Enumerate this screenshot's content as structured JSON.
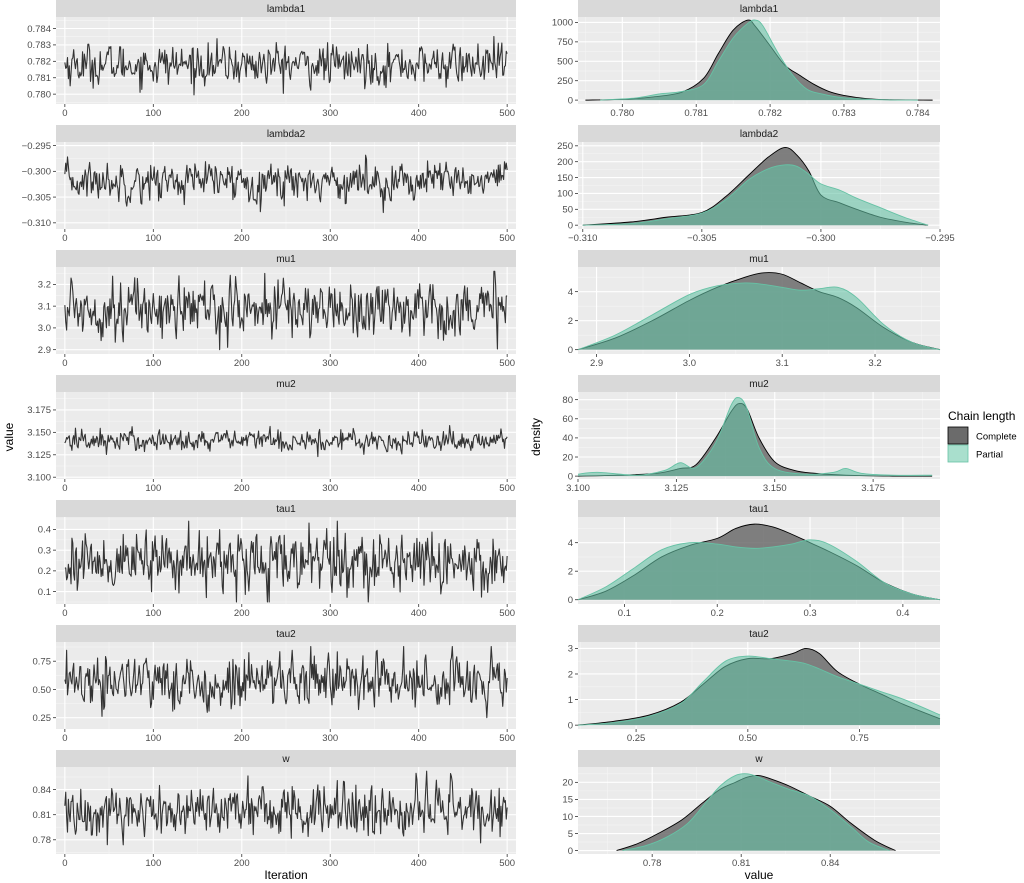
{
  "chart_data": [
    {
      "type": "line",
      "name": "trace-plots",
      "xlabel": "Iteration",
      "ylabel": "value",
      "xlim": [
        -10,
        510
      ],
      "xticks": [
        0,
        100,
        200,
        300,
        400,
        500
      ],
      "line_color": "#333333",
      "n_iterations": 500,
      "panels": [
        {
          "label": "lambda1",
          "mean": 0.7818,
          "sd": 0.0006,
          "lo": 0.7798,
          "hi": 0.7843,
          "ylim": [
            0.7794,
            0.7847
          ],
          "yticks": [
            0.78,
            0.781,
            0.782,
            0.783,
            0.784
          ],
          "ytick_labels": [
            "0.780",
            "0.781",
            "0.782",
            "0.783",
            "0.784"
          ]
        },
        {
          "label": "lambda2",
          "mean": -0.3019,
          "sd": 0.0018,
          "lo": -0.3103,
          "hi": -0.2955,
          "ylim": [
            -0.3112,
            -0.2943
          ],
          "yticks": [
            -0.31,
            -0.305,
            -0.3,
            -0.295
          ],
          "ytick_labels": [
            "−0.310",
            "−0.305",
            "−0.300",
            "−0.295"
          ]
        },
        {
          "label": "mu1",
          "mean": 3.09,
          "sd": 0.065,
          "lo": 2.9,
          "hi": 3.26,
          "ylim": [
            2.88,
            3.28
          ],
          "yticks": [
            2.9,
            3.0,
            3.1,
            3.2
          ],
          "ytick_labels": [
            "2.9",
            "3.0",
            "3.1",
            "3.2"
          ]
        },
        {
          "label": "mu2",
          "mean": 3.141,
          "sd": 0.006,
          "lo": 3.103,
          "hi": 3.19,
          "ylim": [
            3.098,
            3.195
          ],
          "yticks": [
            3.1,
            3.125,
            3.15,
            3.175
          ],
          "ytick_labels": [
            "3.100",
            "3.125",
            "3.150",
            "3.175"
          ]
        },
        {
          "label": "tau1",
          "mean": 0.245,
          "sd": 0.07,
          "lo": 0.05,
          "hi": 0.44,
          "ylim": [
            0.04,
            0.46
          ],
          "yticks": [
            0.1,
            0.2,
            0.3,
            0.4
          ],
          "ytick_labels": [
            "0.1",
            "0.2",
            "0.3",
            "0.4"
          ]
        },
        {
          "label": "tau2",
          "mean": 0.57,
          "sd": 0.12,
          "lo": 0.18,
          "hi": 0.88,
          "ylim": [
            0.15,
            0.92
          ],
          "yticks": [
            0.25,
            0.5,
            0.75
          ],
          "ytick_labels": [
            "0.25",
            "0.50",
            "0.75"
          ]
        },
        {
          "label": "w",
          "mean": 0.815,
          "sd": 0.016,
          "lo": 0.768,
          "hi": 0.862,
          "ylim": [
            0.763,
            0.867
          ],
          "yticks": [
            0.78,
            0.81,
            0.84
          ],
          "ytick_labels": [
            "0.78",
            "0.81",
            "0.84"
          ]
        }
      ]
    },
    {
      "type": "area",
      "name": "density-plots",
      "xlabel": "value",
      "ylabel": "density",
      "legend": {
        "title": "Chain length",
        "position": "right",
        "entries": [
          "Complete",
          "Partial"
        ]
      },
      "series_colors": {
        "Complete": "#6b6b6b",
        "Partial": "#66c2a5"
      },
      "panels": [
        {
          "label": "lambda1",
          "xlim": [
            0.7794,
            0.7843
          ],
          "xticks": [
            0.78,
            0.781,
            0.782,
            0.783,
            0.784
          ],
          "xtick_labels": [
            "0.780",
            "0.781",
            "0.782",
            "0.783",
            "0.784"
          ],
          "ylim": [
            -50,
            1070
          ],
          "yticks": [
            0,
            250,
            500,
            750,
            1000
          ],
          "ytick_labels": [
            "0",
            "250",
            "500",
            "750",
            "1000"
          ],
          "complete": {
            "x": [
              0.7795,
              0.78,
              0.7804,
              0.7808,
              0.7811,
              0.7813,
              0.7815,
              0.7817,
              0.7818,
              0.782,
              0.7822,
              0.7824,
              0.7826,
              0.7828,
              0.783,
              0.7833,
              0.7836,
              0.7842
            ],
            "y": [
              0,
              10,
              40,
              100,
              280,
              600,
              900,
              1030,
              950,
              700,
              450,
              320,
              200,
              110,
              60,
              20,
              5,
              0
            ]
          },
          "partial": {
            "x": [
              0.7797,
              0.7802,
              0.7805,
              0.7808,
              0.7811,
              0.7813,
              0.7815,
              0.7817,
              0.7818,
              0.7819,
              0.7821,
              0.7823,
              0.7825,
              0.7827,
              0.783,
              0.7835,
              0.784
            ],
            "y": [
              0,
              30,
              80,
              110,
              200,
              500,
              800,
              990,
              1030,
              960,
              620,
              330,
              140,
              80,
              30,
              5,
              0
            ]
          }
        },
        {
          "label": "lambda2",
          "xlim": [
            -0.3102,
            -0.295
          ],
          "xticks": [
            -0.31,
            -0.305,
            -0.3,
            -0.295
          ],
          "xtick_labels": [
            "−0.310",
            "−0.305",
            "−0.300",
            "−0.295"
          ],
          "ylim": [
            -12,
            262
          ],
          "yticks": [
            0,
            50,
            100,
            150,
            200,
            250
          ],
          "ytick_labels": [
            "0",
            "50",
            "100",
            "150",
            "200",
            "250"
          ],
          "complete": {
            "x": [
              -0.31,
              -0.308,
              -0.3065,
              -0.305,
              -0.304,
              -0.303,
              -0.3022,
              -0.3015,
              -0.301,
              -0.3005,
              -0.3,
              -0.2992,
              -0.2985,
              -0.2975,
              -0.2965,
              -0.2955
            ],
            "y": [
              0,
              10,
              25,
              40,
              90,
              160,
              215,
              245,
              220,
              170,
              95,
              70,
              50,
              25,
              10,
              0
            ]
          },
          "partial": {
            "x": [
              -0.31,
              -0.308,
              -0.3065,
              -0.305,
              -0.304,
              -0.303,
              -0.3022,
              -0.3015,
              -0.301,
              -0.3005,
              -0.3,
              -0.2992,
              -0.2985,
              -0.2975,
              -0.2965,
              -0.2955
            ],
            "y": [
              0,
              5,
              20,
              38,
              80,
              145,
              178,
              190,
              185,
              160,
              130,
              110,
              85,
              55,
              25,
              0
            ]
          }
        },
        {
          "label": "mu1",
          "xlim": [
            2.88,
            3.27
          ],
          "xticks": [
            2.9,
            3.0,
            3.1,
            3.2
          ],
          "xtick_labels": [
            "2.9",
            "3.0",
            "3.1",
            "3.2"
          ],
          "ylim": [
            -0.3,
            5.7
          ],
          "yticks": [
            0,
            2,
            4
          ],
          "ytick_labels": [
            "0",
            "2",
            "4"
          ],
          "complete": {
            "x": [
              2.88,
              2.92,
              2.96,
              3.0,
              3.03,
              3.06,
              3.08,
              3.1,
              3.12,
              3.14,
              3.16,
              3.18,
              3.21,
              3.24,
              3.27
            ],
            "y": [
              0,
              0.8,
              2.0,
              3.4,
              4.3,
              5.0,
              5.3,
              5.2,
              4.6,
              4.0,
              3.6,
              2.9,
              1.5,
              0.5,
              0
            ]
          },
          "partial": {
            "x": [
              2.88,
              2.92,
              2.96,
              3.0,
              3.03,
              3.06,
              3.08,
              3.1,
              3.12,
              3.14,
              3.16,
              3.18,
              3.21,
              3.24,
              3.27
            ],
            "y": [
              0,
              1.0,
              2.4,
              3.8,
              4.4,
              4.6,
              4.5,
              4.3,
              4.1,
              4.2,
              4.3,
              3.6,
              1.7,
              0.5,
              0
            ]
          }
        },
        {
          "label": "mu2",
          "xlim": [
            3.1,
            3.192
          ],
          "xticks": [
            3.1,
            3.125,
            3.15,
            3.175
          ],
          "xtick_labels": [
            "3.100",
            "3.125",
            "3.150",
            "3.175"
          ],
          "ylim": [
            -3,
            88
          ],
          "yticks": [
            0,
            20,
            40,
            60,
            80
          ],
          "ytick_labels": [
            "0",
            "20",
            "40",
            "60",
            "80"
          ],
          "complete": {
            "x": [
              3.1,
              3.11,
              3.12,
              3.126,
              3.13,
              3.135,
              3.139,
              3.141,
              3.143,
              3.146,
              3.15,
              3.155,
              3.16,
              3.168,
              3.18,
              3.19
            ],
            "y": [
              0,
              1,
              3,
              8,
              12,
              40,
              68,
              76,
              70,
              40,
              15,
              6,
              3,
              1,
              0,
              0
            ]
          },
          "partial": {
            "x": [
              3.1,
              3.105,
              3.115,
              3.122,
              3.126,
              3.13,
              3.135,
              3.139,
              3.141,
              3.143,
              3.146,
              3.15,
              3.158,
              3.165,
              3.168,
              3.172,
              3.18,
              3.19
            ],
            "y": [
              2,
              4,
              1,
              6,
              14,
              9,
              35,
              75,
              82,
              70,
              30,
              8,
              2,
              4,
              8,
              3,
              1,
              1
            ]
          }
        },
        {
          "label": "tau1",
          "xlim": [
            0.05,
            0.44
          ],
          "xticks": [
            0.1,
            0.2,
            0.3,
            0.4
          ],
          "xtick_labels": [
            "0.1",
            "0.2",
            "0.3",
            "0.4"
          ],
          "ylim": [
            -0.3,
            5.8
          ],
          "yticks": [
            0,
            2,
            4
          ],
          "ytick_labels": [
            "0",
            "2",
            "4"
          ],
          "complete": {
            "x": [
              0.05,
              0.08,
              0.11,
              0.14,
              0.17,
              0.2,
              0.22,
              0.24,
              0.26,
              0.28,
              0.3,
              0.32,
              0.35,
              0.38,
              0.41,
              0.44
            ],
            "y": [
              0,
              0.6,
              1.7,
              3.0,
              3.8,
              4.3,
              5.0,
              5.3,
              5.1,
              4.6,
              4.0,
              3.4,
              2.4,
              1.2,
              0.4,
              0
            ]
          },
          "partial": {
            "x": [
              0.05,
              0.08,
              0.11,
              0.14,
              0.17,
              0.2,
              0.22,
              0.24,
              0.26,
              0.28,
              0.3,
              0.32,
              0.35,
              0.38,
              0.41,
              0.44
            ],
            "y": [
              0,
              0.9,
              2.2,
              3.5,
              4.0,
              3.9,
              3.7,
              3.6,
              3.7,
              3.9,
              4.2,
              3.9,
              2.7,
              1.2,
              0.4,
              0
            ]
          }
        },
        {
          "label": "tau2",
          "xlim": [
            0.12,
            0.93
          ],
          "xticks": [
            0.25,
            0.5,
            0.75
          ],
          "xtick_labels": [
            "0.25",
            "0.50",
            "0.75"
          ],
          "ylim": [
            -0.15,
            3.25
          ],
          "yticks": [
            0,
            1,
            2,
            3
          ],
          "ytick_labels": [
            "0",
            "1",
            "2",
            "3"
          ],
          "complete": {
            "x": [
              0.12,
              0.2,
              0.28,
              0.35,
              0.4,
              0.45,
              0.5,
              0.55,
              0.6,
              0.63,
              0.66,
              0.7,
              0.75,
              0.8,
              0.85,
              0.93
            ],
            "y": [
              0,
              0.15,
              0.4,
              0.9,
              1.6,
              2.3,
              2.6,
              2.6,
              2.8,
              3.0,
              2.8,
              2.1,
              1.6,
              1.2,
              0.8,
              0.25
            ]
          },
          "partial": {
            "x": [
              0.12,
              0.2,
              0.28,
              0.35,
              0.4,
              0.45,
              0.5,
              0.55,
              0.6,
              0.63,
              0.66,
              0.7,
              0.75,
              0.8,
              0.85,
              0.93
            ],
            "y": [
              0,
              0.1,
              0.35,
              0.85,
              1.7,
              2.5,
              2.7,
              2.6,
              2.5,
              2.4,
              2.2,
              1.9,
              1.6,
              1.3,
              1.0,
              0.4
            ]
          }
        },
        {
          "label": "w",
          "xlim": [
            0.755,
            0.877
          ],
          "xticks": [
            0.78,
            0.81,
            0.84
          ],
          "xtick_labels": [
            "0.78",
            "0.81",
            "0.84"
          ],
          "ylim": [
            -1,
            24.5
          ],
          "yticks": [
            0,
            5,
            10,
            15,
            20
          ],
          "ytick_labels": [
            "0",
            "5",
            "10",
            "15",
            "20"
          ],
          "complete": {
            "x": [
              0.768,
              0.775,
              0.782,
              0.79,
              0.797,
              0.803,
              0.808,
              0.812,
              0.816,
              0.82,
              0.826,
              0.833,
              0.84,
              0.847,
              0.855,
              0.862
            ],
            "y": [
              0,
              2,
              5,
              9,
              14,
              18,
              20,
              21.5,
              22,
              21,
              19,
              16,
              13,
              8,
              3,
              0
            ]
          },
          "partial": {
            "x": [
              0.77,
              0.778,
              0.785,
              0.792,
              0.798,
              0.803,
              0.808,
              0.812,
              0.816,
              0.82,
              0.826,
              0.833,
              0.84,
              0.847,
              0.853,
              0.86
            ],
            "y": [
              0,
              1.5,
              4,
              8,
              14,
              19,
              22,
              22.5,
              21.5,
              20,
              18,
              16,
              12,
              7,
              2.5,
              0
            ]
          }
        }
      ]
    }
  ]
}
